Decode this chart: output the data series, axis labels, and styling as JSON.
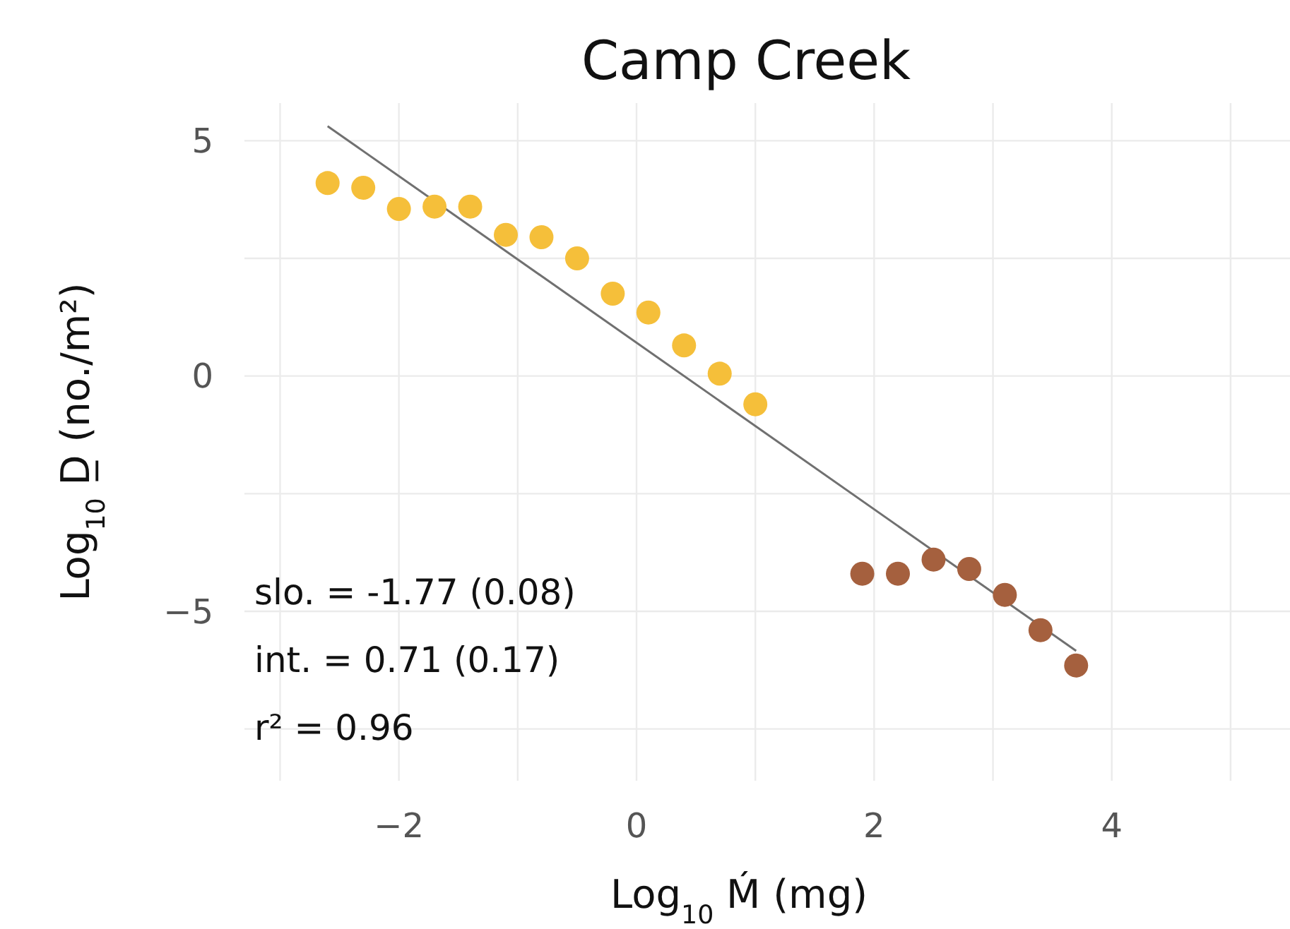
{
  "chart_data": {
    "type": "scatter",
    "title": "Camp Creek",
    "xlabel": "Log$_{10}$ Ḿ (mg)",
    "ylabel": "Log$_{10}$ D̲ (no./m²)",
    "xlim": [
      -3.3,
      5.5
    ],
    "ylim": [
      -8.6,
      5.8
    ],
    "xticks": [
      {
        "value": -3,
        "label": null
      },
      -2,
      {
        "value": -1,
        "label": null
      },
      0,
      {
        "value": 1,
        "label": null
      },
      2,
      {
        "value": 3,
        "label": null
      },
      4,
      {
        "value": 5,
        "label": null
      }
    ],
    "yticks": [
      -5,
      {
        "value": -2.5,
        "label": null
      },
      0,
      {
        "value": 2.5,
        "label": null
      },
      5,
      {
        "value": -7.5,
        "label": null
      }
    ],
    "grid": true,
    "series": [
      {
        "marker": "circle",
        "color": "#f5bf3a",
        "x": [
          -2.6,
          -2.3,
          -2.0,
          -1.7,
          -1.4,
          -1.1,
          -0.8,
          -0.5,
          -0.2,
          0.1,
          0.4,
          0.7,
          1.0
        ],
        "values": [
          4.1,
          4.0,
          3.55,
          3.6,
          3.6,
          3.0,
          2.95,
          2.5,
          1.75,
          1.35,
          0.65,
          0.05,
          -0.6
        ]
      },
      {
        "marker": "circle",
        "color": "#a5603e",
        "x": [
          1.9,
          2.2,
          2.5,
          2.8,
          3.1,
          3.4,
          3.7
        ],
        "values": [
          -4.2,
          -4.2,
          -3.9,
          -4.1,
          -4.65,
          -5.4,
          -6.15
        ]
      },
      {
        "type": "line",
        "color": "#707070",
        "x": [
          -2.6,
          3.7
        ],
        "values": [
          5.31,
          -5.84
        ]
      }
    ],
    "annotations": [
      "slo. = -1.77 (0.08)",
      "int. = 0.71 (0.17)",
      "r² = 0.96"
    ]
  }
}
